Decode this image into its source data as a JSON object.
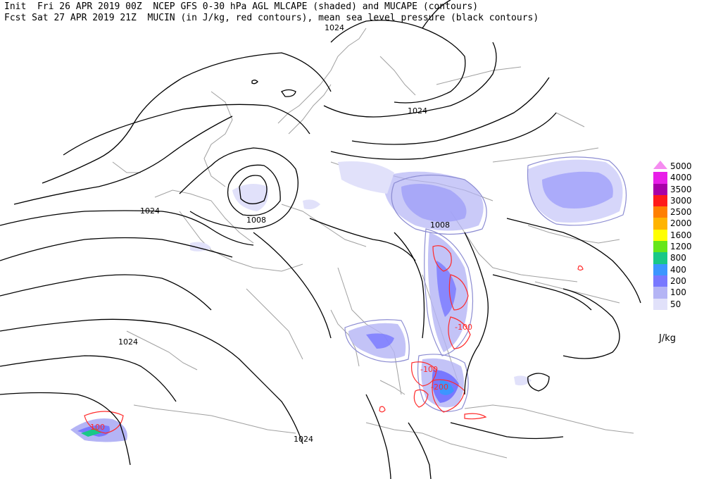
{
  "header": {
    "line1": "Init  Fri 26 APR 2019 00Z  NCEP GFS 0-30 hPa AGL MLCAPE (shaded) and MUCAPE (contours)",
    "line2": "Fcst Sat 27 APR 2019 21Z  MUCIN (in J/kg, red contours), mean sea level pressure (black contours)"
  },
  "legend": {
    "units": "J/kg",
    "items": [
      {
        "label": "5000",
        "color": "#f58cf0"
      },
      {
        "label": "4000",
        "color": "#e81fe8"
      },
      {
        "label": "3500",
        "color": "#a800a8"
      },
      {
        "label": "3000",
        "color": "#ff1a1a"
      },
      {
        "label": "2500",
        "color": "#ff7f00"
      },
      {
        "label": "2000",
        "color": "#ffb400"
      },
      {
        "label": "1600",
        "color": "#ffff00"
      },
      {
        "label": "1200",
        "color": "#66e619"
      },
      {
        "label": "800",
        "color": "#19c887"
      },
      {
        "label": "400",
        "color": "#3c96ff"
      },
      {
        "label": "200",
        "color": "#7878ff"
      },
      {
        "label": "100",
        "color": "#b4b4f5"
      },
      {
        "label": "50",
        "color": "#e1e1fa"
      }
    ]
  },
  "contour_labels": {
    "mslp": [
      "1024",
      "1024",
      "1008",
      "1024",
      "1008",
      "1024",
      "1024"
    ],
    "mucin": [
      "100",
      "-100",
      "-100",
      "-200"
    ]
  },
  "colors": {
    "mslp_contour": "#000000",
    "coastline": "#a0a0a0",
    "mucin_contour": "#ff2a2a",
    "mucape_contour": "#8c8cd2"
  }
}
